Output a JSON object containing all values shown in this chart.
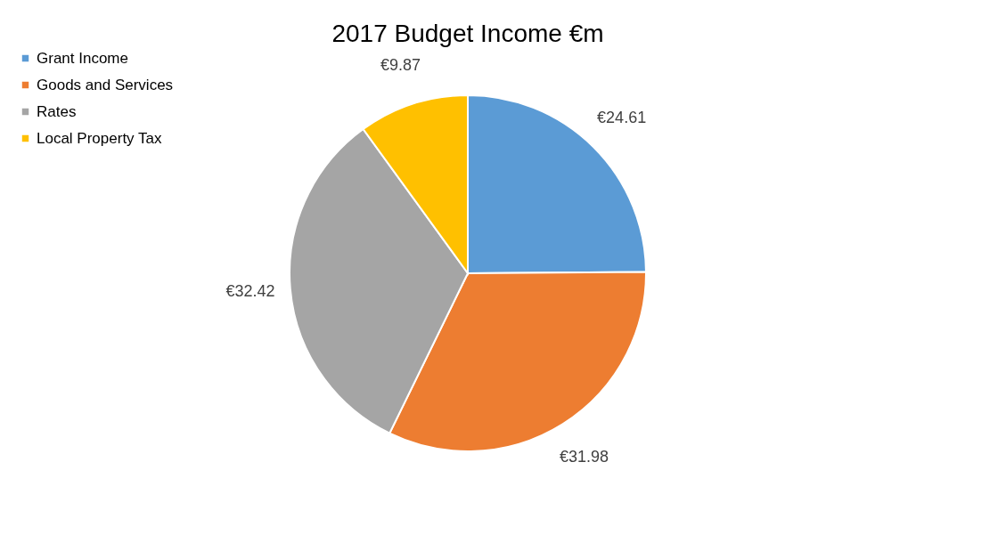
{
  "chart_data": {
    "type": "pie",
    "title": "2017 Budget Income €m",
    "categories": [
      "Grant Income",
      "Goods and Services",
      "Rates",
      "Local Property Tax"
    ],
    "values": [
      24.61,
      31.98,
      32.42,
      9.87
    ],
    "colors": [
      "#5b9bd5",
      "#ed7d31",
      "#a5a5a5",
      "#ffc000"
    ],
    "value_labels": [
      "€24.61",
      "€31.98",
      "€32.42",
      "€9.87"
    ],
    "legend": "left"
  }
}
